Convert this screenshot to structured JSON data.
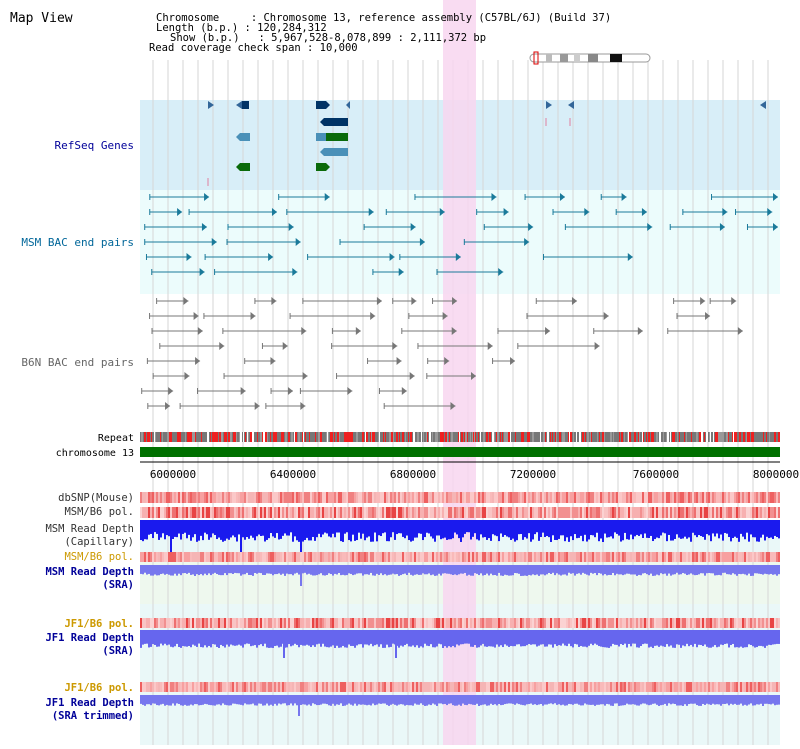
{
  "title": "Map View",
  "info": {
    "line1": "Chromosome     : Chromosome 13, reference assembly (C57BL/6J) (Build 37)",
    "line2": "Length (b.p.) : 120,284,312",
    "line3": "Show (b.p.)   : 5,967,528-8,078,899 : 2,111,372 bp",
    "line4": "Read coverage check span : 10,000"
  },
  "tracks": {
    "refseq": "RefSeq Genes",
    "msm_bac": "MSM BAC end pairs",
    "b6n_bac": "B6N BAC end pairs",
    "repeat": "Repeat",
    "chromosome": "chromosome 13",
    "dbsnp": "dbSNP(Mouse)",
    "msm_b6_pol_1": "MSM/B6 pol.",
    "msm_read_depth_cap_1": "MSM Read Depth",
    "msm_read_depth_cap_2": "(Capillary)",
    "msm_b6_pol_2": "MSM/B6 pol.",
    "msm_read_depth_sra_1": "MSM Read Depth",
    "msm_read_depth_sra_2": "(SRA)",
    "jf1_b6_pol_1": "JF1/B6 pol.",
    "jf1_read_depth_1": "JF1 Read Depth",
    "jf1_read_depth_2": "(SRA)",
    "jf1_b6_pol_2": "JF1/B6 pol.",
    "jf1_trim_1": "JF1 Read Depth",
    "jf1_trim_2": "(SRA trimmed)"
  },
  "axis": {
    "ticks": [
      "6000000",
      "6400000",
      "6800000",
      "7200000",
      "7600000",
      "8000000"
    ]
  },
  "colors": {
    "refseq_bg": "#d8eef8",
    "bac_bg": "#ecfcfc",
    "highlight": "#f8d6f0",
    "chromosome_bar": "#007000",
    "msm_label": "#006699",
    "navy_label": "#000099",
    "orange_label": "#cc9900",
    "depth_blue": "#1a1aee",
    "depth_light": "#7777ee"
  }
}
